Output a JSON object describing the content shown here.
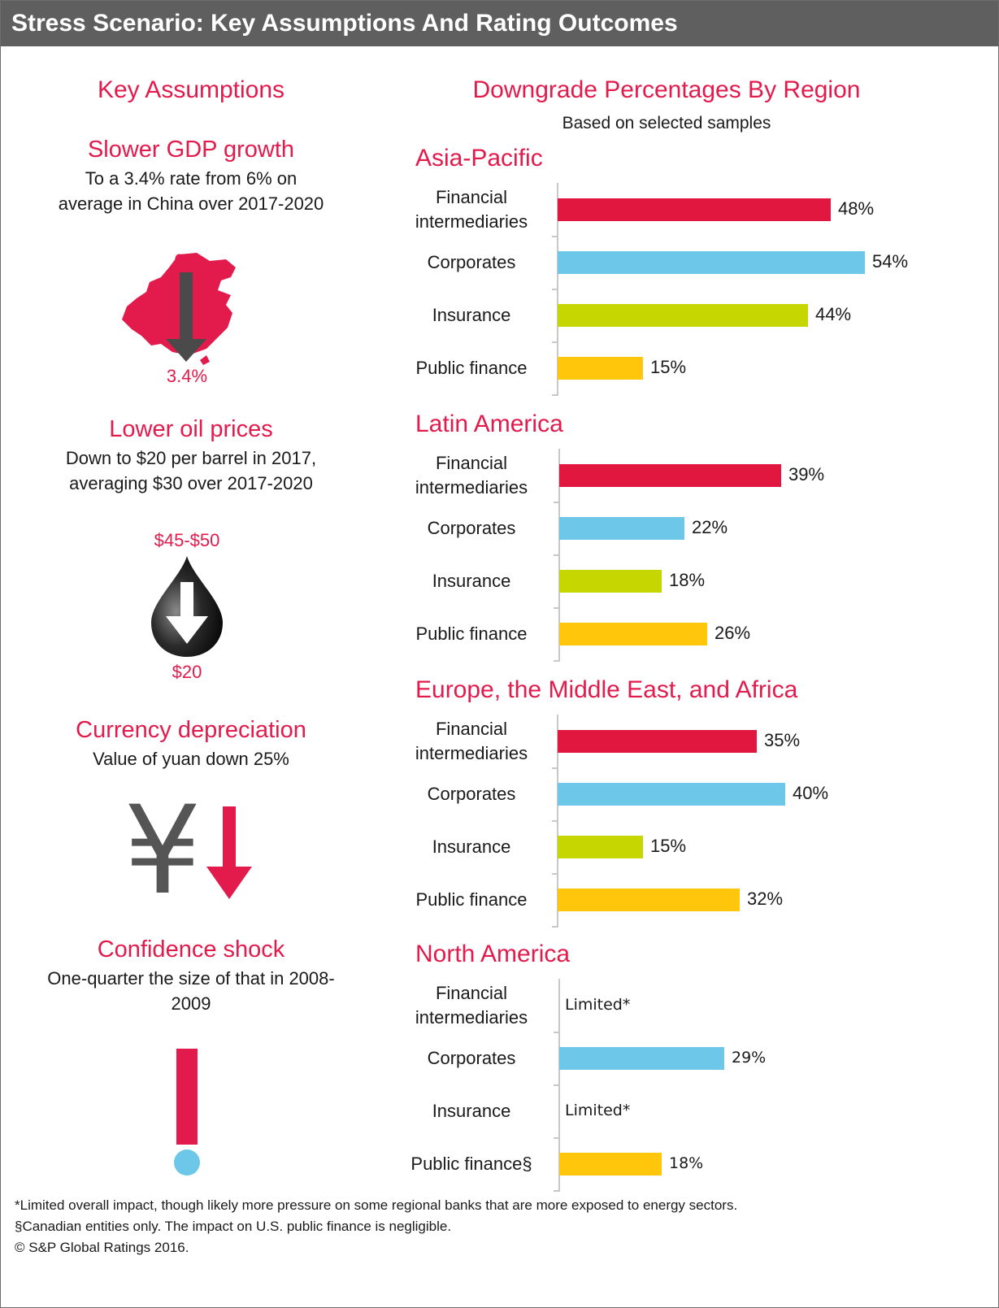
{
  "header": {
    "title": "Stress Scenario: Key Assumptions And Rating Outcomes"
  },
  "assumptions": {
    "heading": "Key Assumptions",
    "gdp": {
      "title": "Slower GDP growth",
      "desc_l1": "To a 3.4% rate from 6% on",
      "desc_l2": "average in China over 2017-2020",
      "from": "6%",
      "to": "3.4%",
      "icon": "china-map-down-arrow-icon"
    },
    "oil": {
      "title": "Lower oil prices",
      "desc_l1": "Down to $20 per barrel in 2017,",
      "desc_l2": "averaging $30 over 2017-2020",
      "from": "$45-$50",
      "to": "$20",
      "icon": "oil-drop-down-arrow-icon"
    },
    "currency": {
      "title": "Currency depreciation",
      "desc_l1": "Value of yuan down 25%",
      "yen_symbol": "¥",
      "icon": "yuan-down-arrow-icon"
    },
    "confidence": {
      "title": "Confidence shock",
      "desc_l1": "One-quarter the size of that in 2008-",
      "desc_l2": "2009",
      "icon": "exclamation-icon"
    }
  },
  "chart_data": {
    "type": "bar",
    "title": "Downgrade Percentages By Region",
    "subtitle": "Based on selected samples",
    "category_labels": [
      [
        "Financial",
        "intermediaries"
      ],
      [
        "Corporates"
      ],
      [
        "Insurance"
      ],
      [
        "Public finance"
      ]
    ],
    "colors": [
      "#e2173f",
      "#6cc7e8",
      "#c5d600",
      "#ffc60b"
    ],
    "regions": [
      {
        "name": "Asia-Pacific",
        "values": [
          48,
          54,
          44,
          15
        ],
        "labels": [
          "48%",
          "54%",
          "44%",
          "15%"
        ]
      },
      {
        "name": "Latin America",
        "values": [
          39,
          22,
          18,
          26
        ],
        "labels": [
          "39%",
          "22%",
          "18%",
          "26%"
        ]
      },
      {
        "name": "Europe, the Middle East, and Africa",
        "values": [
          35,
          40,
          15,
          32
        ],
        "labels": [
          "35%",
          "40%",
          "15%",
          "32%"
        ]
      },
      {
        "name": "North America",
        "category_labels": [
          [
            "Financial",
            "intermediaries"
          ],
          [
            "Corporates"
          ],
          [
            "Insurance"
          ],
          [
            "Public finance§"
          ]
        ],
        "values": [
          null,
          29,
          null,
          18
        ],
        "labels": [
          "Limited*",
          "29%",
          "Limited*",
          "18%"
        ]
      }
    ]
  },
  "footnotes": {
    "note1": "*Limited overall impact, though likely more pressure on some regional banks that are more exposed to energy sectors.",
    "note2": "§Canadian entities only. The impact on U.S. public finance is negligible.",
    "copyright": "© S&P Global Ratings 2016."
  }
}
